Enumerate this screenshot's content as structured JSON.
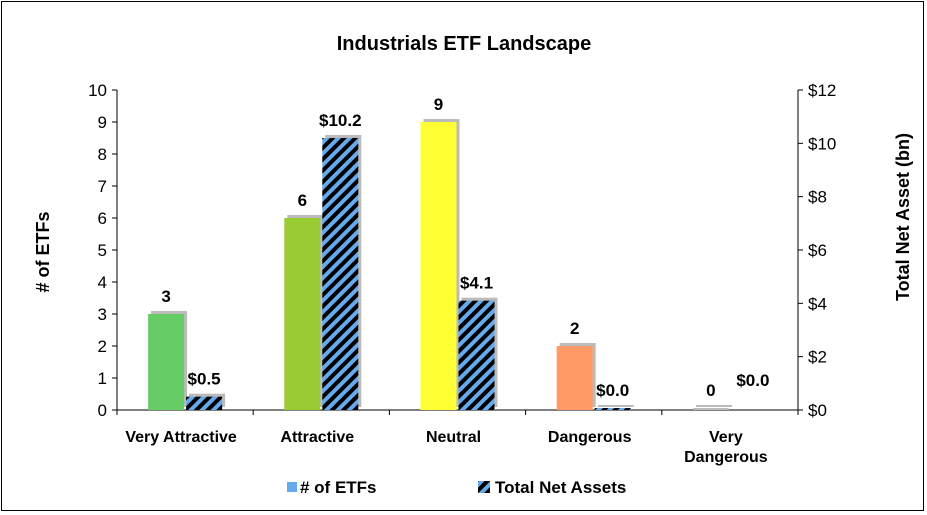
{
  "chart_data": {
    "type": "bar",
    "title": "Industrials ETF Landscape",
    "categories": [
      "Very Attractive",
      "Attractive",
      "Neutral",
      "Dangerous",
      "Very Dangerous"
    ],
    "series": [
      {
        "name": "# of ETFs",
        "axis": "left",
        "values": [
          3,
          6,
          9,
          2,
          0
        ],
        "value_labels": [
          "3",
          "6",
          "9",
          "2",
          "0"
        ],
        "colors": [
          "#66cc66",
          "#99cc33",
          "#ffff33",
          "#ff9966",
          "#bbbbbb"
        ]
      },
      {
        "name": "Total Net Assets",
        "axis": "right",
        "values": [
          0.5,
          10.2,
          4.1,
          0.04,
          0.0
        ],
        "value_labels": [
          "$0.5",
          "$10.2",
          "$4.1",
          "$0.0",
          "$0.0"
        ],
        "pattern": "hatched",
        "colors": [
          "#66aaee",
          "#000000"
        ]
      }
    ],
    "ylabel": "# of ETFs",
    "ylabel_right": "Total Net Asset (bn)",
    "ylim": [
      0,
      10
    ],
    "ylim_right": [
      0,
      12
    ],
    "yticks": [
      "0",
      "1",
      "2",
      "3",
      "4",
      "5",
      "6",
      "7",
      "8",
      "9",
      "10"
    ],
    "yticks_right": [
      "$0",
      "$2",
      "$4",
      "$6",
      "$8",
      "$10",
      "$12"
    ],
    "legend_position": "bottom",
    "grid": false
  }
}
